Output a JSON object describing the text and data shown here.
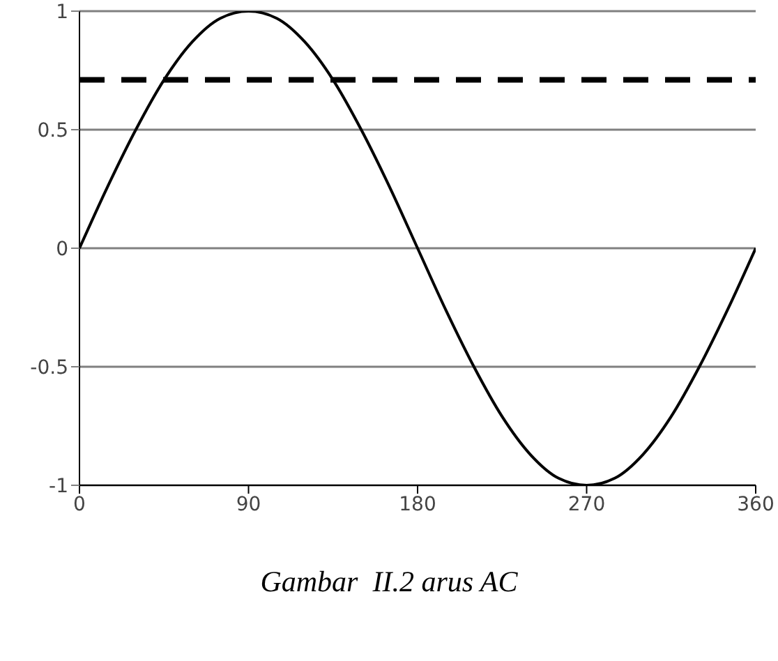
{
  "chart_data": {
    "type": "line",
    "x": [
      0,
      15,
      30,
      45,
      60,
      75,
      90,
      105,
      120,
      135,
      150,
      165,
      180,
      195,
      210,
      225,
      240,
      255,
      270,
      285,
      300,
      315,
      330,
      345,
      360
    ],
    "series": [
      {
        "color": "#000000",
        "values": [
          0,
          0.26,
          0.5,
          0.71,
          0.87,
          0.97,
          1,
          0.97,
          0.87,
          0.71,
          0.5,
          0.26,
          0,
          -0.26,
          -0.5,
          -0.71,
          -0.87,
          -0.97,
          -1,
          -0.97,
          -0.87,
          -0.71,
          -0.5,
          -0.26,
          0
        ]
      }
    ],
    "xlim": [
      0,
      360
    ],
    "xticks": [
      0,
      90,
      180,
      270,
      360
    ],
    "ylim": [
      -1,
      1
    ],
    "yticks": [
      -1,
      -0.5,
      0,
      0.5,
      1
    ],
    "grid": "y",
    "marker": "none",
    "line_style": "solid",
    "ref_lines": [
      {
        "axis": "y",
        "value": 0.71,
        "color": "#000000",
        "line_style": "dashed"
      }
    ],
    "annotations": [
      "Gambar  II.2 arus AC"
    ]
  }
}
